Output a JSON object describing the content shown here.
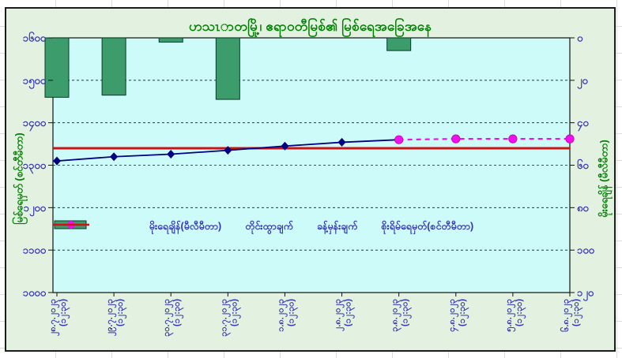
{
  "title_bar": {
    "chart_title": "ဟသၤာတမြို့၊ ဧရာဝတီမြစ်၏ မြစ်ရေအခြေအနေ"
  },
  "chart_data": {
    "type": "combo",
    "title": "ဟသၤာတမြို့၊ ဧရာဝတီမြစ်၏ မြစ်ရေအခြေအနေ",
    "categories": [
      {
        "date": "၂၈.၇.၂၀၂၃",
        "time": "(၁၂:၃၀)"
      },
      {
        "date": "၂၉.၇.၂၀၂၃",
        "time": "(၁၂:၃၀)"
      },
      {
        "date": "၃၀.၇.၂၀၂၃",
        "time": "(၁၂:၃၀)"
      },
      {
        "date": "၃၁.၇.၂၀၂၃",
        "time": "(၁၂:၃၀)"
      },
      {
        "date": "၁.၈.၂၀၂၃",
        "time": "(၁၂:၃၀)"
      },
      {
        "date": "၂.၈.၂၀၂၃",
        "time": "(၁၂:၃၀)"
      },
      {
        "date": "၃.၈.၂၀၂၃",
        "time": "(၁၂:၃၀)"
      },
      {
        "date": "၄.၈.၂၀၂၃",
        "time": "(၁၂:၃၀)"
      },
      {
        "date": "၅.၈.၂၀၂၃",
        "time": "(၁၂:၃၀)"
      },
      {
        "date": "၆.၈.၂၀၂၃",
        "time": "(၁၂:၃၀)"
      }
    ],
    "left_axis": {
      "title": "မြစ်ရေမှတ် (စင်တီမီတာ)",
      "min": 1000,
      "max": 1600,
      "step": 100,
      "tick_labels": [
        "၁၆၀၀",
        "၁၅၀၀",
        "၁၄၀၀",
        "၁၃၀၀",
        "၁၂၀၀",
        "၁၁၀၀",
        "၁၀၀၀"
      ]
    },
    "right_axis": {
      "title": "မိုးရေချိန် (မီလီမီတာ)",
      "min": 0,
      "max": 120,
      "step": 20,
      "direction": "downward-from-top",
      "tick_labels": [
        "၀",
        "၂၀",
        "၄၀",
        "၆၀",
        "၈၀",
        "၁၀၀",
        "၁၂၀"
      ]
    },
    "grid": "horizontal-dashed",
    "legend_position": "inside-plot-center",
    "series": [
      {
        "name": "မိုးရေချိန်(မီလီမီတာ)",
        "kind": "bar",
        "axis": "right",
        "color": "#3d9c6c",
        "values": [
          28,
          27,
          2,
          29,
          0,
          0,
          6,
          0,
          0,
          0
        ]
      },
      {
        "name": "တိုင်းထွာချက်",
        "kind": "line-diamond",
        "axis": "left",
        "color": "#000082",
        "values": [
          1310,
          1320,
          1326,
          1335,
          1345,
          1354,
          1360,
          null,
          null,
          null
        ]
      },
      {
        "name": "ခန့်မှန်းချက်",
        "kind": "dashed-line-circle",
        "axis": "left",
        "color": "#f010e8",
        "values": [
          null,
          null,
          null,
          null,
          null,
          null,
          1360,
          1362,
          1362,
          1362
        ]
      },
      {
        "name": "စိုးရိမ်ရေမှတ်(စင်တီမီတာ)",
        "kind": "hline",
        "axis": "left",
        "color": "#cc1414",
        "value": 1340
      }
    ],
    "colors": {
      "plot_background": "#cdfbf9",
      "chart_background": "#e3f1e1",
      "tick_label_color": "#3535b5",
      "title_color": "#008200"
    }
  }
}
